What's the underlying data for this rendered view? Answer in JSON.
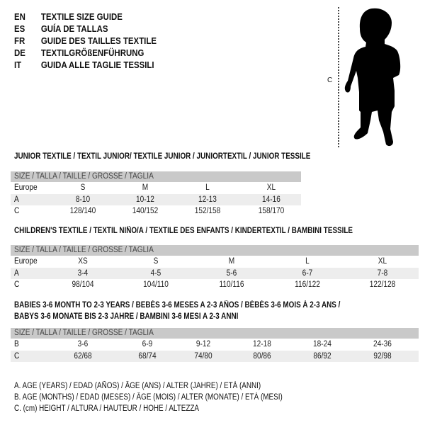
{
  "header": [
    {
      "code": "EN",
      "text": "TEXTILE SIZE GUIDE"
    },
    {
      "code": "ES",
      "text": "GUÍA DE TALLAS"
    },
    {
      "code": "FR",
      "text": "GUIDE DES TAILLES TEXTILE"
    },
    {
      "code": "DE",
      "text": "TEXTILGRÖßENFÜHRUNG"
    },
    {
      "code": "IT",
      "text": "GUIDA ALLE TAGLIE TESSILI"
    }
  ],
  "figure": {
    "measure_label": "C",
    "icon": "child-silhouette-icon"
  },
  "size_header": "SIZE / TALLA / TAILLE / GRÖSSE / TAGLIA",
  "junior": {
    "title": "JUNIOR TEXTILE / TEXTIL JUNIOR/ TEXTILE JUNIOR / JUNIORTEXTIL / JUNIOR TESSILE",
    "rows": [
      {
        "label": "Europe",
        "cells": [
          "S",
          "M",
          "L",
          "XL"
        ]
      },
      {
        "label": "A",
        "cells": [
          "8-10",
          "10-12",
          "12-13",
          "14-16"
        ]
      },
      {
        "label": "C",
        "cells": [
          "128/140",
          "140/152",
          "152/158",
          "158/170"
        ]
      }
    ]
  },
  "children": {
    "title": "CHILDREN'S TEXTILE / TEXTIL NIÑO/A / TEXTILE DES ENFANTS / KINDERTEXTIL / BAMBINI TESSILE",
    "rows": [
      {
        "label": "Europe",
        "cells": [
          "XS",
          "S",
          "M",
          "L",
          "XL"
        ]
      },
      {
        "label": "A",
        "cells": [
          "3-4",
          "4-5",
          "5-6",
          "6-7",
          "7-8"
        ]
      },
      {
        "label": "C",
        "cells": [
          "98/104",
          "104/110",
          "110/116",
          "116/122",
          "122/128"
        ]
      }
    ]
  },
  "babies": {
    "title_line1": "BABIES 3-6 MONTH TO 2-3 YEARS / BEBÉS 3-6 MESES A 2-3 AÑOS / BÉBÉS 3-6 MOIS À 2-3 ANS /",
    "title_line2": "BABYS 3-6 MONATE BIS 2-3 JAHRE / BAMBINI 3-6 MESI A 2-3 ANNI",
    "rows": [
      {
        "label": "B",
        "cells": [
          "3-6",
          "6-9",
          "9-12",
          "12-18",
          "18-24",
          "24-36"
        ]
      },
      {
        "label": "C",
        "cells": [
          "62/68",
          "68/74",
          "74/80",
          "80/86",
          "86/92",
          "92/98"
        ]
      }
    ]
  },
  "legend": [
    "A. AGE (YEARS) / EDAD (AÑOS) / ÂGE (ANS) / ALTER (JAHRE) / ETÀ (ANNI)",
    "B. AGE (MONTHS) / EDAD (MESES) / ÂGE (MOIS) / ALTER (MONATE) / ETÀ (MESI)",
    "C. (cm) HEIGHT / ALTURA / HAUTEUR / HÖHE / ALTEZZA"
  ],
  "colors": {
    "header_bar": "#c9c9c9",
    "stripe": "#ededed"
  }
}
